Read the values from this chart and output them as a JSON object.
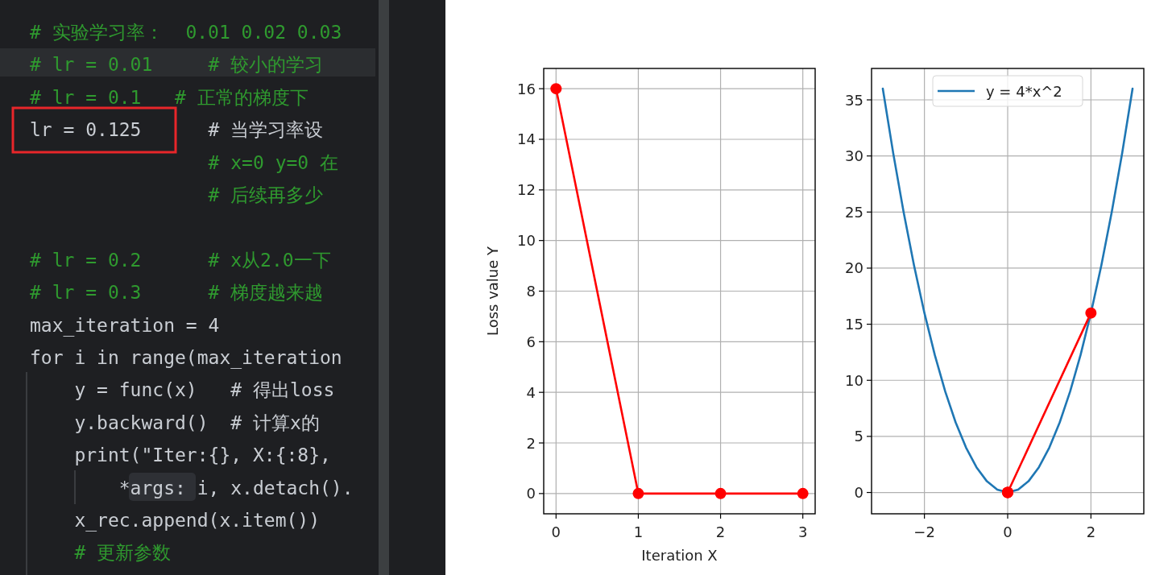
{
  "chart_data": [
    {
      "type": "other",
      "annotations": [
        "# 实验学习率：  0.01 0.02 0.03",
        "# lr = 0.01     # 较小的学习",
        "# lr = 0.1   # 正常的梯度下",
        "lr = 0.125      # 当学习率设",
        "                # x=0 y=0 在",
        "                # 后续再多少",
        "# lr = 0.2      # x从2.0一下",
        "# lr = 0.3      # 梯度越来越",
        "max_iteration = 4",
        "for i in range(max_iteration",
        "    y = func(x)   # 得出loss",
        "    y.backward()  # 计算x的",
        "    print(\"Iter:{}, X:{:8},",
        "        *args: i, x.detach().",
        "    x_rec.append(x.item())",
        "    # 更新参数"
      ]
    },
    {
      "type": "line",
      "xlabel": "Iteration X",
      "ylabel": "Loss value Y",
      "xlim": [
        -0.15,
        3.15
      ],
      "ylim": [
        -0.8,
        16.8
      ],
      "xticks": [
        0,
        1,
        2,
        3
      ],
      "yticks": [
        0,
        2,
        4,
        6,
        8,
        10,
        12,
        14,
        16
      ],
      "grid": true,
      "marker": "circle",
      "series": [
        {
          "color": "#ff0000",
          "x": [
            0,
            1,
            2,
            3
          ],
          "values": [
            16,
            0,
            0,
            0
          ]
        }
      ]
    },
    {
      "type": "line",
      "xlim": [
        -3.27,
        3.27
      ],
      "ylim": [
        -1.9,
        37.8
      ],
      "xticks": [
        {
          "value": -2,
          "label": "−2"
        },
        0,
        2
      ],
      "yticks": [
        0,
        5,
        10,
        15,
        20,
        25,
        30,
        35
      ],
      "grid": true,
      "legend": "top",
      "series": [
        {
          "name": "y = 4*x^2",
          "color": "#1f77b4",
          "marker": "none",
          "x": [
            -3,
            -2.75,
            -2.5,
            -2.25,
            -2,
            -1.75,
            -1.5,
            -1.25,
            -1,
            -0.75,
            -0.5,
            -0.25,
            0,
            0.25,
            0.5,
            0.75,
            1,
            1.25,
            1.5,
            1.75,
            2,
            2.25,
            2.5,
            2.75,
            3
          ],
          "values": [
            36,
            30.25,
            25,
            20.25,
            16,
            12.25,
            9,
            6.25,
            4,
            2.25,
            1,
            0.25,
            0,
            0.25,
            1,
            2.25,
            4,
            6.25,
            9,
            12.25,
            16,
            20.25,
            25,
            30.25,
            36
          ]
        },
        {
          "color": "#ff0000",
          "marker": "circle",
          "x": [
            2,
            0,
            0,
            0
          ],
          "values": [
            16,
            0,
            0,
            0
          ]
        }
      ]
    }
  ]
}
